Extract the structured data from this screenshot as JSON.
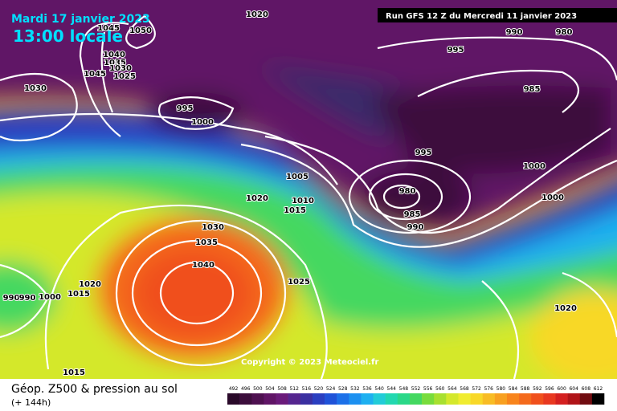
{
  "header": {
    "date": "Mardi 17 janvier 2023",
    "time": "13:00 locale",
    "run": "Run GFS 12 Z du Mercredi 11 janvier 2023"
  },
  "copyright": "Copyright © 2023 Meteociel.fr",
  "footer": {
    "title": "Géop. Z500 & pression au sol",
    "lead": "(+ 144h)"
  },
  "isobar_labels": [
    "1020",
    "1050",
    "1045",
    "1040",
    "1035",
    "1030",
    "1025",
    "1045",
    "1030",
    "995",
    "1000",
    "990",
    "980",
    "995",
    "985",
    "995",
    "1000",
    "1005",
    "980",
    "985",
    "990",
    "1010",
    "1015",
    "1020",
    "1000",
    "1030",
    "1035",
    "1040",
    "1025",
    "1020",
    "1015",
    "990",
    "990",
    "1000",
    "1015",
    "1020"
  ],
  "legend": {
    "labels": [
      492,
      496,
      500,
      504,
      508,
      512,
      516,
      520,
      524,
      528,
      532,
      536,
      540,
      544,
      548,
      552,
      556,
      560,
      564,
      568,
      572,
      576,
      580,
      584,
      588,
      592,
      596,
      600,
      604,
      608,
      612
    ],
    "colors": [
      "#2a0a2a",
      "#3c0d3c",
      "#4e1050",
      "#601466",
      "#6a1a7a",
      "#55258f",
      "#3a2fa0",
      "#2a3ec0",
      "#1f52d8",
      "#1c70e8",
      "#1c90f0",
      "#1eb0f0",
      "#22ccd8",
      "#22d8b0",
      "#2ad888",
      "#44d860",
      "#78dc3c",
      "#a8e030",
      "#d4e82c",
      "#f0ec30",
      "#f8d828",
      "#f8bc24",
      "#f8a020",
      "#f8841c",
      "#f46a1c",
      "#f0501c",
      "#e83820",
      "#d42020",
      "#b01418",
      "#700c10",
      "#000000"
    ]
  }
}
